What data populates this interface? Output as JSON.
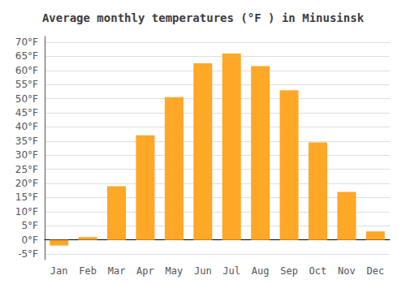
{
  "chart_data": {
    "type": "bar",
    "title": "Average monthly temperatures (°F ) in Minusinsk",
    "categories": [
      "Jan",
      "Feb",
      "Mar",
      "Apr",
      "May",
      "Jun",
      "Jul",
      "Aug",
      "Sep",
      "Oct",
      "Nov",
      "Dec"
    ],
    "values": [
      -2,
      1,
      19,
      37,
      50.5,
      62.5,
      66,
      61.5,
      53,
      34.5,
      17,
      3
    ],
    "color": "#FFA726",
    "ylim": [
      -7,
      72
    ],
    "yticks": [
      {
        "value": -5,
        "label": "-5°F"
      },
      {
        "value": 0,
        "label": "0°F"
      },
      {
        "value": 5,
        "label": "5°F"
      },
      {
        "value": 10,
        "label": "10°F"
      },
      {
        "value": 15,
        "label": "15°F"
      },
      {
        "value": 20,
        "label": "20°F"
      },
      {
        "value": 25,
        "label": "25°F"
      },
      {
        "value": 30,
        "label": "30°F"
      },
      {
        "value": 35,
        "label": "35°F"
      },
      {
        "value": 40,
        "label": "40°F"
      },
      {
        "value": 45,
        "label": "45°F"
      },
      {
        "value": 50,
        "label": "50°F"
      },
      {
        "value": 55,
        "label": "55°F"
      },
      {
        "value": 60,
        "label": "60°F"
      },
      {
        "value": 65,
        "label": "65°F"
      },
      {
        "value": 70,
        "label": "70°F"
      }
    ],
    "grid": true
  }
}
